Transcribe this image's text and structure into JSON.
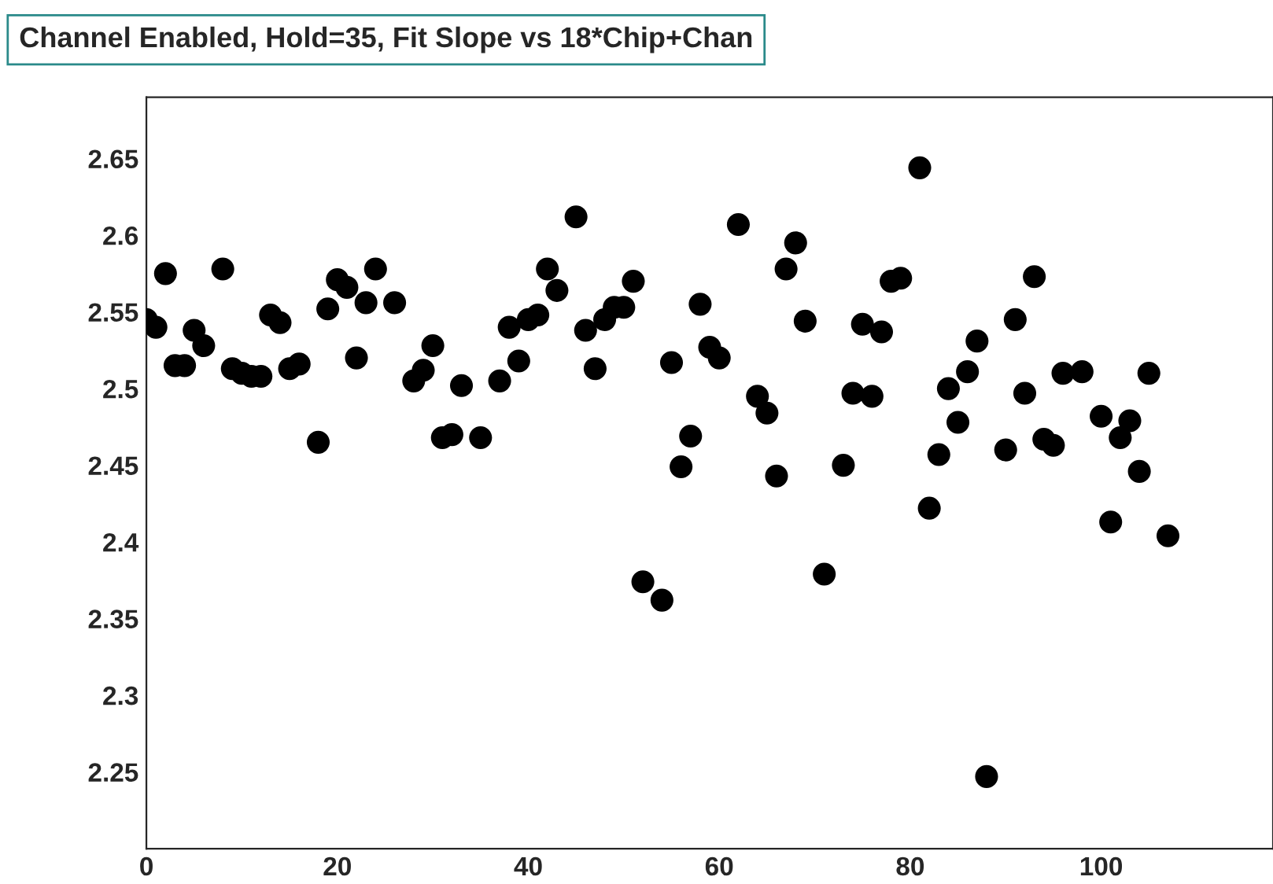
{
  "chart_data": {
    "type": "scatter",
    "title": "Channel Enabled, Hold=35, Fit Slope vs 18*Chip+Chan",
    "x": [
      0,
      1,
      2,
      3,
      4,
      5,
      6,
      8,
      9,
      10,
      11,
      12,
      13,
      14,
      15,
      16,
      18,
      19,
      20,
      21,
      22,
      23,
      24,
      26,
      28,
      29,
      30,
      31,
      32,
      33,
      35,
      37,
      38,
      39,
      40,
      41,
      42,
      43,
      45,
      46,
      47,
      48,
      49,
      50,
      51,
      52,
      54,
      55,
      56,
      57,
      58,
      59,
      60,
      62,
      64,
      65,
      66,
      67,
      68,
      69,
      71,
      73,
      74,
      75,
      76,
      77,
      78,
      79,
      81,
      82,
      83,
      84,
      85,
      86,
      87,
      88,
      90,
      91,
      92,
      93,
      94,
      95,
      96,
      98,
      100,
      101,
      102,
      103,
      104,
      105,
      107
    ],
    "series": [
      {
        "color": "#000000",
        "values": [
          2.545,
          2.54,
          2.575,
          2.515,
          2.515,
          2.538,
          2.528,
          2.578,
          2.513,
          2.51,
          2.508,
          2.508,
          2.548,
          2.543,
          2.513,
          2.516,
          2.465,
          2.552,
          2.571,
          2.566,
          2.52,
          2.556,
          2.578,
          2.556,
          2.505,
          2.512,
          2.528,
          2.468,
          2.47,
          2.502,
          2.468,
          2.505,
          2.54,
          2.518,
          2.545,
          2.548,
          2.578,
          2.564,
          2.612,
          2.538,
          2.513,
          2.545,
          2.553,
          2.553,
          2.57,
          2.374,
          2.362,
          2.517,
          2.449,
          2.469,
          2.555,
          2.527,
          2.52,
          2.607,
          2.495,
          2.484,
          2.443,
          2.578,
          2.595,
          2.544,
          2.379,
          2.45,
          2.497,
          2.542,
          2.495,
          2.537,
          2.57,
          2.572,
          2.644,
          2.422,
          2.457,
          2.5,
          2.478,
          2.511,
          2.531,
          2.247,
          2.46,
          2.545,
          2.497,
          2.573,
          2.467,
          2.463,
          2.51,
          2.511,
          2.482,
          2.413,
          2.468,
          2.479,
          2.446,
          2.51,
          2.404
        ]
      }
    ],
    "xlim": [
      0,
      118
    ],
    "xticks": [
      0,
      20,
      40,
      60,
      80,
      100
    ],
    "ylim": [
      2.2,
      2.69
    ],
    "yticks": [
      2.25,
      2.3,
      2.35,
      2.4,
      2.45,
      2.5,
      2.55,
      2.6,
      2.65
    ],
    "marker": "circle",
    "grid": false,
    "legend": false
  }
}
